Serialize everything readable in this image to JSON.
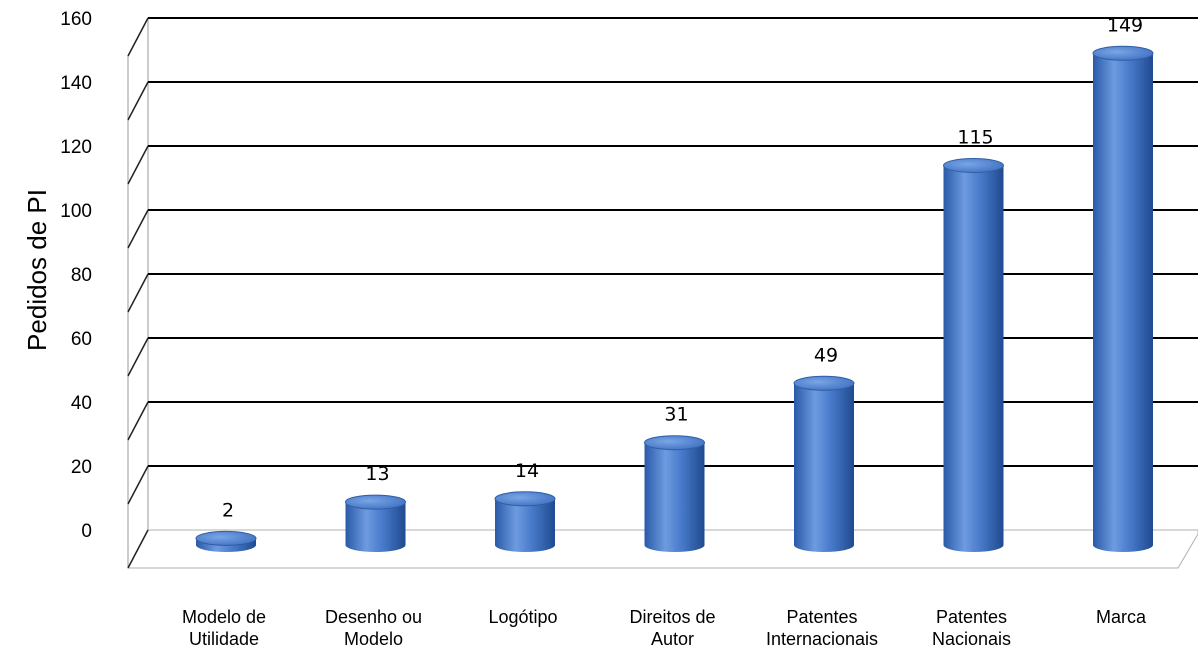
{
  "chart_data": {
    "type": "bar",
    "style": "3d-cylinder",
    "categories": [
      [
        "Modelo de",
        "Utilidade"
      ],
      [
        "Desenho ou",
        "Modelo"
      ],
      [
        "Logótipo"
      ],
      [
        "Direitos de",
        "Autor"
      ],
      [
        "Patentes",
        "Internacionais"
      ],
      [
        "Patentes",
        "Nacionais"
      ],
      [
        "Marca"
      ]
    ],
    "values": [
      2,
      13,
      14,
      31,
      49,
      115,
      149
    ],
    "data_labels": [
      "2",
      "13",
      "14",
      "31",
      "49",
      "115",
      "149"
    ],
    "ylabel": "Pedidos de PI",
    "xlabel": "",
    "ylim": [
      0,
      160
    ],
    "yticks": [
      0,
      20,
      40,
      60,
      80,
      100,
      120,
      140,
      160
    ],
    "grid": true,
    "legend": "none",
    "colors": {
      "bar_light": "#6e9be0",
      "bar_mid": "#3f6fc0",
      "bar_dark": "#1f4a8f",
      "bar_top": "#4a7fd0",
      "gridline": "#000000",
      "floor": "#c0c0c0"
    }
  }
}
